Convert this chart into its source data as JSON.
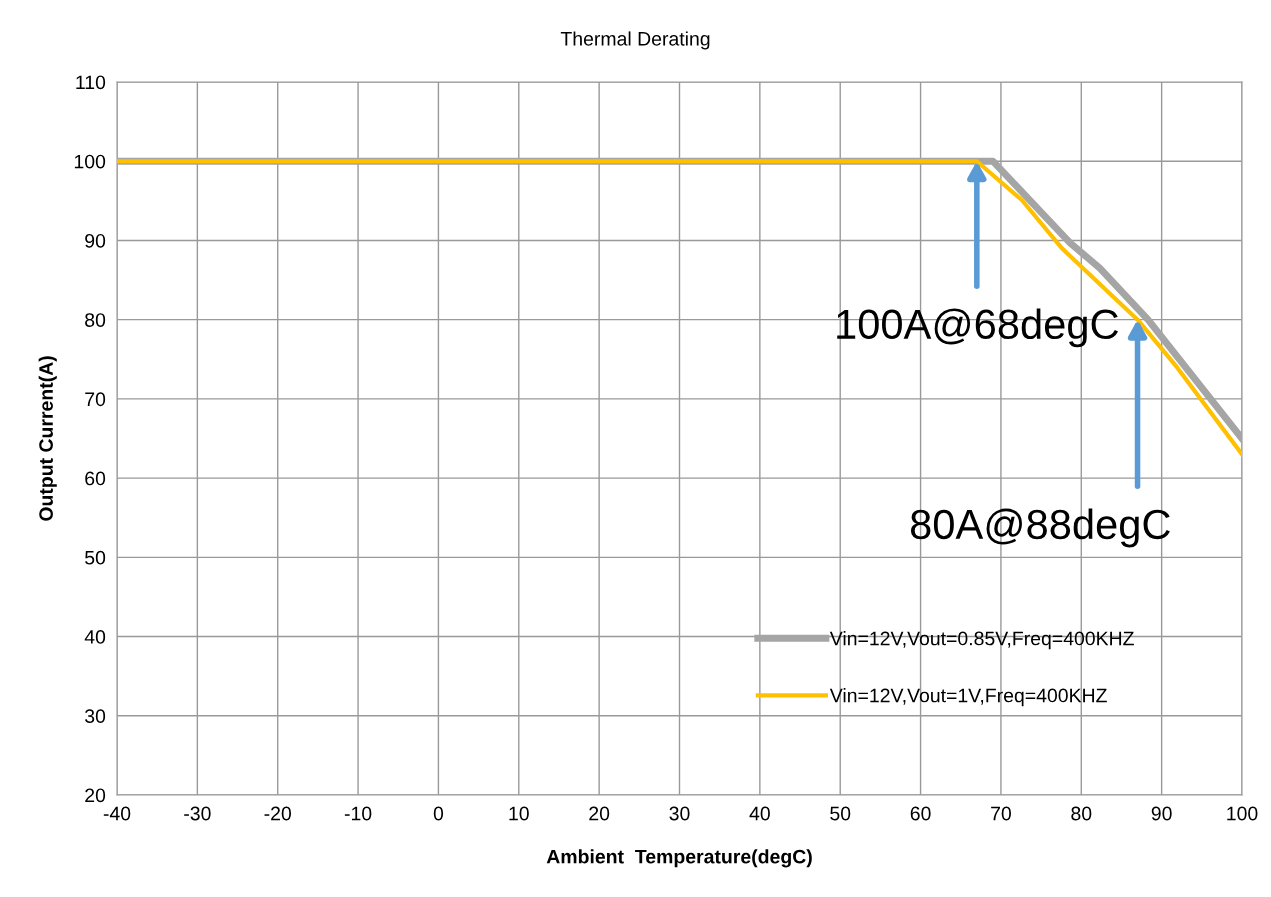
{
  "chart_data": {
    "type": "line",
    "title": "Thermal Derating",
    "xlabel": "Ambient  Temperature(degC)",
    "ylabel": "Output Current(A)",
    "xlim": [
      -40,
      100
    ],
    "xticks": [
      -40,
      -30,
      -20,
      -10,
      0,
      10,
      20,
      30,
      40,
      50,
      60,
      70,
      80,
      90,
      100
    ],
    "ylim": [
      20,
      110
    ],
    "yticks": [
      20,
      30,
      40,
      50,
      60,
      70,
      80,
      90,
      100,
      110
    ],
    "series": [
      {
        "name": "Vin=12V,Vout=0.85V,Freq=400KHZ",
        "color": "#a5a5a5",
        "x": [
          -40,
          69,
          78.6,
          82.3,
          88.3,
          100
        ],
        "values": [
          100,
          100,
          89.7,
          86.5,
          80,
          65
        ]
      },
      {
        "name": "Vin=12V,Vout=1V,Freq=400KHZ",
        "color": "#ffc000",
        "x": [
          -40,
          67,
          72.6,
          77.6,
          87,
          91.9,
          100
        ],
        "values": [
          100,
          100,
          95.1,
          89,
          80,
          74,
          63
        ]
      }
    ],
    "annotations": [
      {
        "text": "100A@68degC",
        "x": 67,
        "y": 100
      },
      {
        "text": "80A@88degC",
        "x": 87,
        "y": 80
      }
    ],
    "grid": true,
    "legend": "lower right",
    "marker": "none",
    "line_style": "solid"
  }
}
